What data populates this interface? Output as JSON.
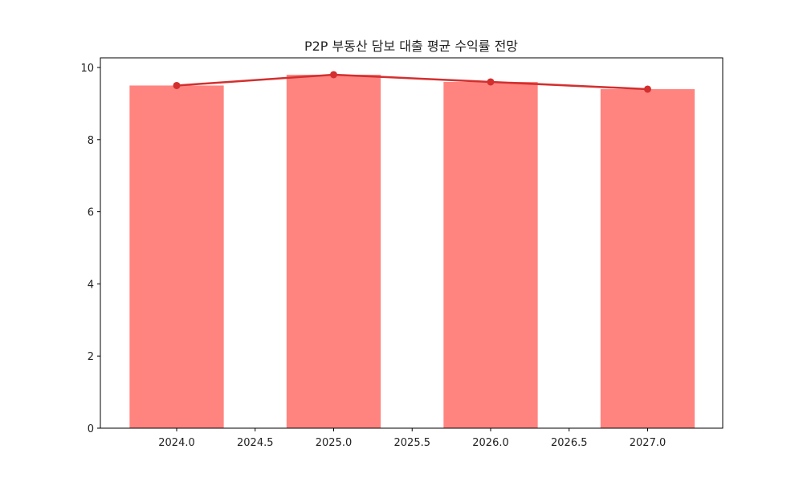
{
  "chart_data": {
    "type": "bar+line",
    "title": "P2P 부동산 담보 대출 평균 수익률 전망",
    "xlabel": "",
    "ylabel": "",
    "x": [
      2024,
      2025,
      2026,
      2027
    ],
    "series": [
      {
        "name": "bar",
        "kind": "bar",
        "values": [
          9.5,
          9.8,
          9.6,
          9.4
        ],
        "color": "#ff8480"
      },
      {
        "name": "line",
        "kind": "line",
        "values": [
          9.5,
          9.8,
          9.6,
          9.4
        ],
        "color": "#d32f2f",
        "marker": "circle"
      }
    ],
    "bar_width": 0.6,
    "xlim": [
      2023.6,
      2027.55
    ],
    "ylim": [
      0,
      10.29
    ],
    "x_ticks": [
      "2024.0",
      "2024.5",
      "2025.0",
      "2025.5",
      "2026.0",
      "2026.5",
      "2027.0"
    ],
    "x_tick_values": [
      2024.0,
      2024.5,
      2025.0,
      2025.5,
      2026.0,
      2026.5,
      2027.0
    ],
    "y_ticks": [
      "0",
      "2",
      "4",
      "6",
      "8",
      "10"
    ],
    "y_tick_values": [
      0,
      2,
      4,
      6,
      8,
      10
    ],
    "grid": false,
    "legend": null
  }
}
